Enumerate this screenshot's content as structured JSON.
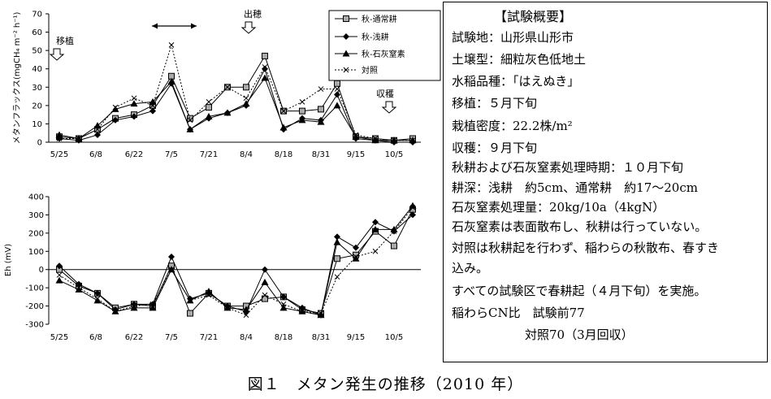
{
  "chart_data": [
    {
      "type": "line",
      "ylabel": "メタンフラックス(mgCH₄ m⁻² h⁻¹)",
      "ylim": [
        0,
        70
      ],
      "yticks": [
        0,
        10,
        20,
        30,
        40,
        50,
        60,
        70
      ],
      "xticks": [
        "5/25",
        "6/8",
        "6/22",
        "7/5",
        "7/21",
        "8/4",
        "8/18",
        "8/31",
        "9/15",
        "10/5"
      ],
      "x": [
        0,
        1,
        2,
        3,
        4,
        5,
        6,
        7,
        8,
        9,
        10,
        11,
        12,
        13,
        14,
        15,
        16,
        17,
        18,
        19
      ],
      "series": [
        {
          "name": "秋-通常耕",
          "marker": "square",
          "values": [
            3,
            2,
            7,
            13,
            15,
            20,
            36,
            13,
            19,
            30,
            30,
            47,
            17,
            17,
            18,
            32,
            3,
            2,
            1,
            2
          ]
        },
        {
          "name": "秋-浅耕",
          "marker": "diamond",
          "values": [
            2,
            1,
            4,
            12,
            14,
            17,
            32,
            7,
            13,
            16,
            20,
            40,
            7,
            13,
            12,
            26,
            2,
            1,
            0,
            0
          ]
        },
        {
          "name": "秋-石灰窒素",
          "marker": "triangle",
          "values": [
            4,
            2,
            9,
            18,
            21,
            22,
            33,
            7,
            14,
            16,
            21,
            35,
            8,
            12,
            11,
            20,
            3,
            1,
            1,
            1
          ]
        },
        {
          "name": "対照",
          "marker": "x",
          "values": [
            2,
            2,
            7,
            19,
            24,
            20,
            53,
            12,
            22,
            30,
            24,
            41,
            17,
            22,
            29,
            29,
            4,
            2,
            1,
            1
          ]
        }
      ],
      "annotations": [
        "移植",
        "出穂",
        "収穫"
      ],
      "legend": "top-right"
    },
    {
      "type": "line",
      "ylabel": "Eh (mV)",
      "ylim": [
        -300,
        400
      ],
      "yticks": [
        -300,
        -200,
        -100,
        0,
        100,
        200,
        300,
        400
      ],
      "xticks": [
        "5/25",
        "6/8",
        "6/22",
        "7/5",
        "7/21",
        "8/4",
        "8/18",
        "8/31",
        "9/15",
        "10/5"
      ],
      "x": [
        0,
        1,
        2,
        3,
        4,
        5,
        6,
        7,
        8,
        9,
        10,
        11,
        12,
        13,
        14,
        15,
        16,
        17,
        18,
        19
      ],
      "series": [
        {
          "name": "秋-通常耕",
          "marker": "square",
          "values": [
            0,
            -90,
            -130,
            -210,
            -190,
            -200,
            20,
            -240,
            -130,
            -200,
            -200,
            -160,
            -150,
            -220,
            -240,
            60,
            80,
            210,
            130,
            330
          ]
        },
        {
          "name": "秋-浅耕",
          "marker": "diamond",
          "values": [
            20,
            -80,
            -130,
            -220,
            -190,
            -190,
            70,
            -160,
            -130,
            -200,
            -230,
            0,
            -150,
            -210,
            -250,
            180,
            120,
            260,
            210,
            300
          ]
        },
        {
          "name": "秋-石灰窒素",
          "marker": "triangle",
          "values": [
            -60,
            -110,
            -170,
            -230,
            -210,
            -210,
            0,
            -170,
            -120,
            -210,
            -220,
            -70,
            -210,
            -230,
            -250,
            150,
            60,
            220,
            220,
            350
          ]
        },
        {
          "name": "対照",
          "marker": "x",
          "values": [
            -30,
            -100,
            -160,
            -230,
            -200,
            -190,
            0,
            -170,
            -140,
            -210,
            -250,
            -140,
            -190,
            -230,
            -240,
            -40,
            70,
            100,
            210,
            340
          ]
        }
      ]
    }
  ],
  "summary": {
    "title": "【試験概要】",
    "lines": [
      "試験地：山形県山形市",
      "土壌型：細粒灰色低地土",
      "水稲品種：「はえぬき」",
      "移植：５月下旬",
      "栽植密度：22.2株/m²",
      "収穫：９月下旬",
      "秋耕および石灰窒素処理時期：１０月下旬",
      "耕深：浅耕　約5cm、通常耕　約17～20cm",
      "石灰窒素処理量：20kg/10a（4kgN）",
      "石灰窒素は表面散布し、秋耕は行っていない。",
      "対照は秋耕起を行わず、稲わらの秋散布、春すき",
      "込み。",
      "すべての試験区で春耕起（４月下旬）を実施。",
      "稲わらCN比　試験前77",
      "　　　　　　対照70（3月回収）"
    ]
  },
  "caption": "図１　メタン発生の推移（2010 年）"
}
